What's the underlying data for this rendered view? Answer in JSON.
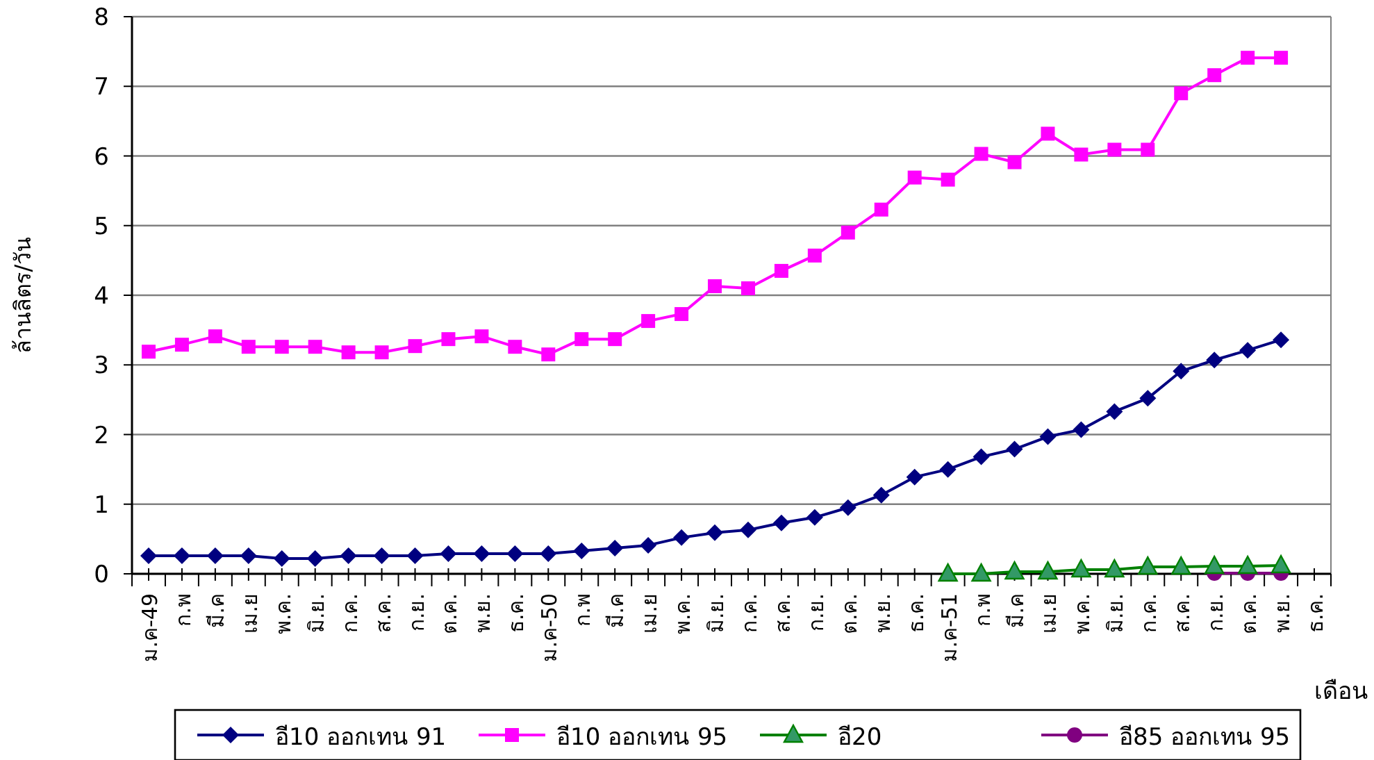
{
  "chart_data": {
    "type": "line",
    "xlabel": "เดือน",
    "ylabel": "ล้านลิตร/วัน",
    "categories": [
      "ม.ค-49",
      "ก.พ",
      "มี.ค",
      "เม.ย",
      "พ.ค.",
      "มิ.ย.",
      "ก.ค.",
      "ส.ค.",
      "ก.ย.",
      "ต.ค.",
      "พ.ย.",
      "ธ.ค.",
      "ม.ค-50",
      "ก.พ",
      "มี.ค",
      "เม.ย",
      "พ.ค.",
      "มิ.ย.",
      "ก.ค.",
      "ส.ค.",
      "ก.ย.",
      "ต.ค.",
      "พ.ย.",
      "ธ.ค.",
      "ม.ค-51",
      "ก.พ",
      "มี.ค",
      "เม.ย",
      "พ.ค.",
      "มิ.ย.",
      "ก.ค.",
      "ส.ค.",
      "ก.ย.",
      "ต.ค.",
      "พ.ย.",
      "ธ.ค."
    ],
    "series": [
      {
        "name": "อี10 ออกเทน 91",
        "color": "#000080",
        "marker": "diamond",
        "values": [
          0.26,
          0.26,
          0.26,
          0.26,
          0.22,
          0.22,
          0.26,
          0.26,
          0.26,
          0.29,
          0.29,
          0.29,
          0.29,
          0.33,
          0.37,
          0.41,
          0.52,
          0.59,
          0.63,
          0.73,
          0.81,
          0.95,
          1.13,
          1.39,
          1.5,
          1.68,
          1.79,
          1.97,
          2.07,
          2.33,
          2.52,
          2.91,
          3.07,
          3.21,
          3.36,
          null
        ]
      },
      {
        "name": "อี10 ออกเทน 95",
        "color": "#ff00ff",
        "marker": "square",
        "values": [
          3.19,
          3.29,
          3.41,
          3.26,
          3.26,
          3.26,
          3.18,
          3.18,
          3.27,
          3.37,
          3.41,
          3.26,
          3.15,
          3.37,
          3.37,
          3.63,
          3.73,
          4.13,
          4.1,
          4.35,
          4.57,
          4.9,
          5.23,
          5.69,
          5.66,
          6.03,
          5.91,
          6.32,
          6.02,
          6.09,
          6.09,
          6.9,
          7.16,
          7.41,
          7.41,
          null
        ]
      },
      {
        "name": "อี20",
        "color": "#008000",
        "marker": "triangle",
        "values": [
          null,
          null,
          null,
          null,
          null,
          null,
          null,
          null,
          null,
          null,
          null,
          null,
          null,
          null,
          null,
          null,
          null,
          null,
          null,
          null,
          null,
          null,
          null,
          null,
          0,
          0,
          0.03,
          0.03,
          0.06,
          0.06,
          0.1,
          0.1,
          0.11,
          0.11,
          0.12,
          null
        ]
      },
      {
        "name": "อี85 ออกเทน 95",
        "color": "#800080",
        "marker": "circle",
        "values": [
          null,
          null,
          null,
          null,
          null,
          null,
          null,
          null,
          null,
          null,
          null,
          null,
          null,
          null,
          null,
          null,
          null,
          null,
          null,
          null,
          null,
          null,
          null,
          null,
          null,
          null,
          null,
          null,
          null,
          null,
          null,
          null,
          0.01,
          0.01,
          0.01,
          null
        ]
      }
    ],
    "ylim": [
      0,
      8
    ],
    "yticks": [
      0,
      1,
      2,
      3,
      4,
      5,
      6,
      7,
      8
    ],
    "grid": "y",
    "legend": "bottom",
    "line_style": "solid"
  }
}
